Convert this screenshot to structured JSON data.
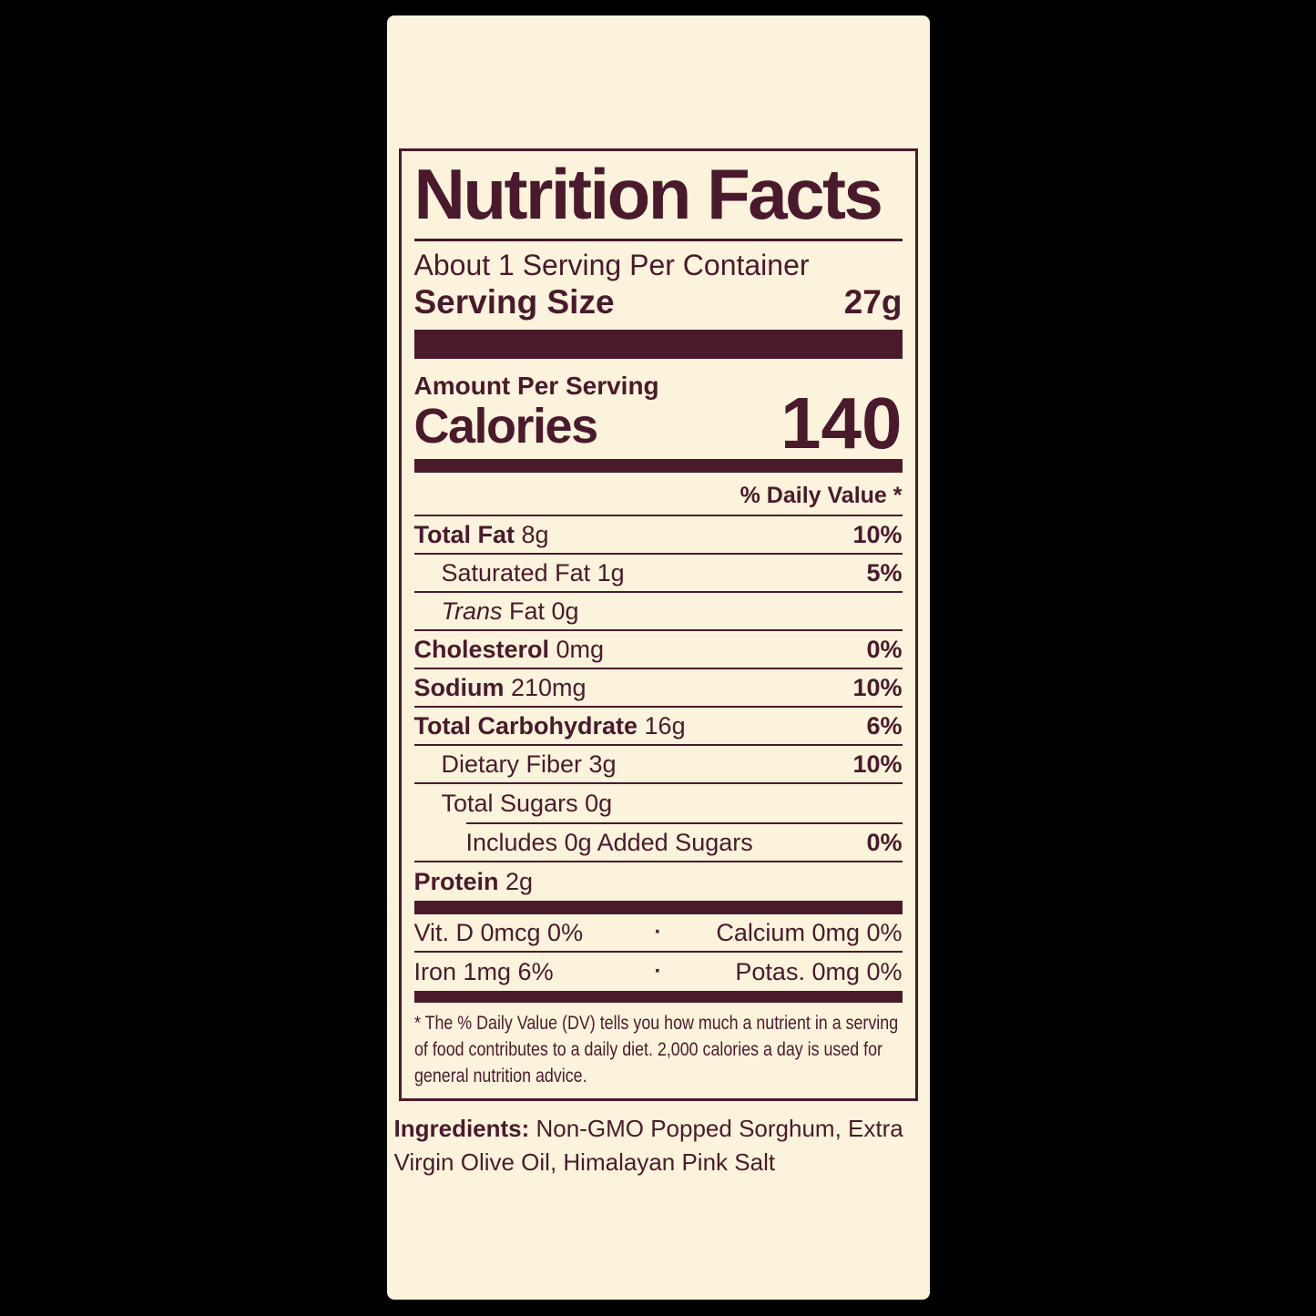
{
  "colors": {
    "accent": "#4a1a2c",
    "panel_background": "#fcf3dc",
    "page_background": "#000000"
  },
  "label": {
    "title": "Nutrition Facts",
    "servings_per_container": "About 1 Serving Per Container",
    "serving_size_label": "Serving Size",
    "serving_size_value": "27g",
    "amount_per_serving": "Amount Per Serving",
    "calories_label": "Calories",
    "calories_value": "140",
    "daily_value_header": "% Daily Value *",
    "rows": [
      {
        "bold": "Total Fat",
        "rest": " 8g",
        "dv": "10%"
      },
      {
        "rest": "Saturated Fat 1g",
        "dv": "5%"
      },
      {
        "italic": "Trans",
        "rest": " Fat 0g",
        "dv": ""
      },
      {
        "bold": "Cholesterol",
        "rest": " 0mg",
        "dv": "0%"
      },
      {
        "bold": "Sodium",
        "rest": " 210mg",
        "dv": "10%"
      },
      {
        "bold": "Total Carbohydrate",
        "rest": " 16g",
        "dv": "6%"
      },
      {
        "rest": "Dietary Fiber 3g",
        "dv": "10%"
      },
      {
        "rest": "Total Sugars 0g",
        "dv": ""
      },
      {
        "rest": "Includes 0g Added Sugars",
        "dv": "0%"
      },
      {
        "bold": "Protein",
        "rest": " 2g",
        "dv": ""
      }
    ],
    "micronutrients": [
      {
        "left": "Vit. D 0mcg 0%",
        "right": "Calcium 0mg 0%"
      },
      {
        "left": "Iron 1mg 6%",
        "right": "Potas. 0mg 0%"
      }
    ],
    "dot_separator": "·",
    "footnote": "* The % Daily Value (DV) tells you how much a nutrient in a serving of food contributes to a daily diet. 2,000 calories a day is used for general nutrition advice.",
    "ingredients": {
      "label": "Ingredients:",
      "text": "Non-GMO Popped Sorghum, Extra Virgin Olive Oil, Himalayan Pink Salt"
    }
  }
}
